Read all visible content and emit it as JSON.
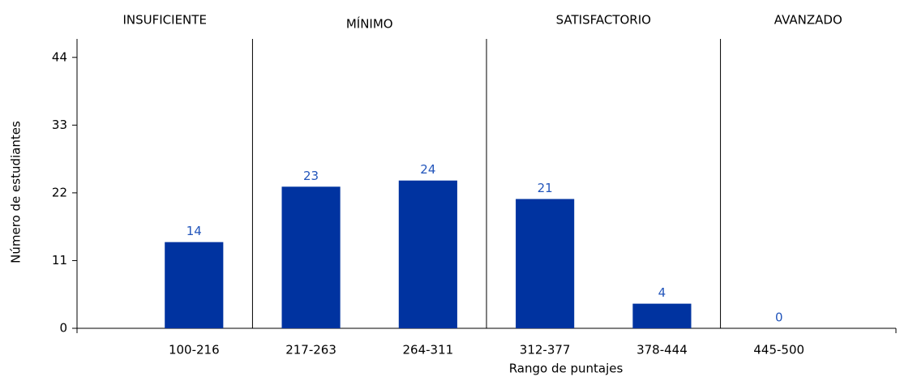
{
  "chart_data": {
    "type": "bar",
    "xlabel": "Rango de puntajes",
    "ylabel": "Número de estudiantes",
    "categories": [
      "100-216",
      "217-263",
      "264-311",
      "312-377",
      "378-444",
      "445-500"
    ],
    "values": [
      14,
      23,
      24,
      21,
      4,
      0
    ],
    "color": "#0033a0",
    "label_color": "#2255bb",
    "groups": [
      {
        "name": "INSUFICIENTE",
        "size": 1
      },
      {
        "name": "MÍNIMO",
        "size": 2
      },
      {
        "name": "SATISFACTORIO",
        "size": 2
      },
      {
        "name": "AVANZADO",
        "size": 1
      }
    ],
    "ylim": [
      0,
      47
    ],
    "yticks": [
      0,
      11,
      22,
      33,
      44
    ]
  }
}
